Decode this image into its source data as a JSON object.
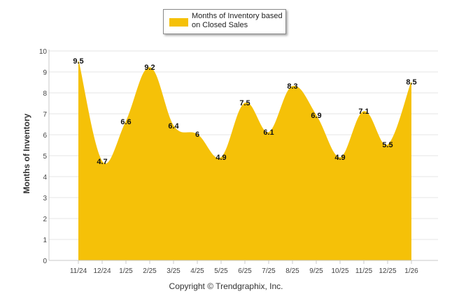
{
  "colors": {
    "fill": "#F5C108",
    "stroke": "#F5C108",
    "grid": "#e6e6e6",
    "axis": "#c8c8c8"
  },
  "legend": {
    "label": "Months of Inventory based on Closed Sales"
  },
  "footer": {
    "copyright": "Copyright © Trendgraphix, Inc."
  },
  "chart_data": {
    "type": "area",
    "title": "",
    "xlabel": "",
    "ylabel": "Months of Inventory",
    "ylim": [
      0,
      10
    ],
    "yticks": [
      "0",
      "1",
      "2",
      "3",
      "4",
      "5",
      "6",
      "7",
      "8",
      "9",
      "10"
    ],
    "categories": [
      "11/24",
      "12/24",
      "1/25",
      "2/25",
      "3/25",
      "4/25",
      "5/25",
      "6/25",
      "7/25",
      "8/25",
      "9/25",
      "10/25",
      "11/25",
      "12/25",
      "1/26"
    ],
    "series": [
      {
        "name": "Months of Inventory based on Closed Sales",
        "values": [
          9.5,
          4.7,
          6.6,
          9.2,
          6.4,
          6,
          4.9,
          7.5,
          6.1,
          8.3,
          6.9,
          4.9,
          7.1,
          5.5,
          8.5
        ],
        "labels": [
          "9.5",
          "4.7",
          "6.6",
          "9.2",
          "6.4",
          "6",
          "4.9",
          "7.5",
          "6.1",
          "8.3",
          "6.9",
          "4.9",
          "7.1",
          "5.5",
          "8.5"
        ]
      }
    ],
    "legend_position": "top-center",
    "grid": true
  }
}
